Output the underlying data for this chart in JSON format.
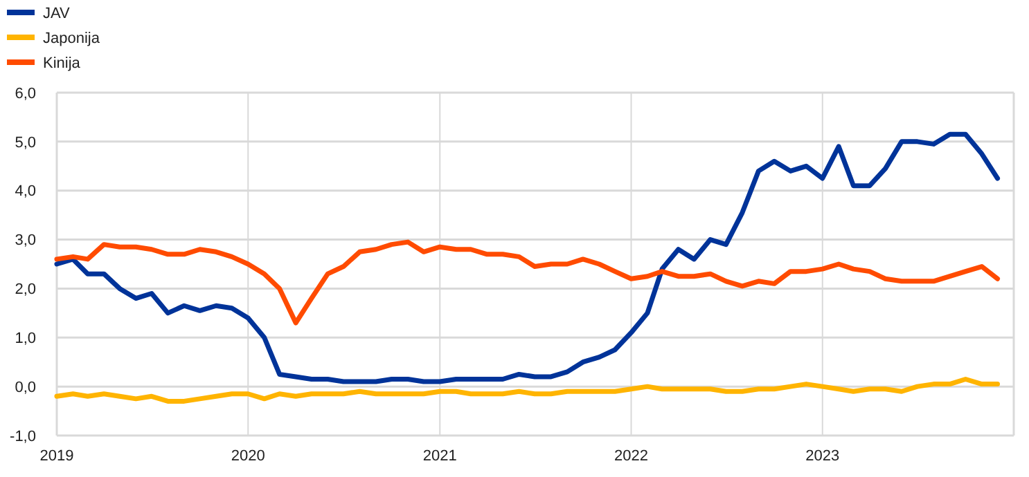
{
  "chart_data": {
    "type": "line",
    "x": [
      "2019-01",
      "2019-02",
      "2019-03",
      "2019-04",
      "2019-05",
      "2019-06",
      "2019-07",
      "2019-08",
      "2019-09",
      "2019-10",
      "2019-11",
      "2019-12",
      "2020-01",
      "2020-02",
      "2020-03",
      "2020-04",
      "2020-05",
      "2020-06",
      "2020-07",
      "2020-08",
      "2020-09",
      "2020-10",
      "2020-11",
      "2020-12",
      "2021-01",
      "2021-02",
      "2021-03",
      "2021-04",
      "2021-05",
      "2021-06",
      "2021-07",
      "2021-08",
      "2021-09",
      "2021-10",
      "2021-11",
      "2021-12",
      "2022-01",
      "2022-02",
      "2022-03",
      "2022-04",
      "2022-05",
      "2022-06",
      "2022-07",
      "2022-08",
      "2022-09",
      "2022-10",
      "2022-11",
      "2022-12",
      "2023-01",
      "2023-02",
      "2023-03",
      "2023-04",
      "2023-05",
      "2023-06",
      "2023-07",
      "2023-08",
      "2023-09",
      "2023-10",
      "2023-11",
      "2023-12"
    ],
    "series": [
      {
        "name": "JAV",
        "color": "#003399",
        "values": [
          2.5,
          2.6,
          2.3,
          2.3,
          2.0,
          1.8,
          1.9,
          1.5,
          1.65,
          1.55,
          1.65,
          1.6,
          1.4,
          1.0,
          0.25,
          0.2,
          0.15,
          0.15,
          0.1,
          0.1,
          0.1,
          0.15,
          0.15,
          0.1,
          0.1,
          0.15,
          0.15,
          0.15,
          0.15,
          0.25,
          0.2,
          0.2,
          0.3,
          0.5,
          0.6,
          0.75,
          1.1,
          1.5,
          2.4,
          2.8,
          2.6,
          3.0,
          2.9,
          3.55,
          4.4,
          4.6,
          4.4,
          4.5,
          4.25,
          4.9,
          4.1,
          4.1,
          4.45,
          5.0,
          5.0,
          4.95,
          5.15,
          5.15,
          4.75,
          4.25
        ]
      },
      {
        "name": "Japonija",
        "color": "#ffb400",
        "values": [
          -0.2,
          -0.15,
          -0.2,
          -0.15,
          -0.2,
          -0.25,
          -0.2,
          -0.3,
          -0.3,
          -0.25,
          -0.2,
          -0.15,
          -0.15,
          -0.25,
          -0.15,
          -0.2,
          -0.15,
          -0.15,
          -0.15,
          -0.1,
          -0.15,
          -0.15,
          -0.15,
          -0.15,
          -0.1,
          -0.1,
          -0.15,
          -0.15,
          -0.15,
          -0.1,
          -0.15,
          -0.15,
          -0.1,
          -0.1,
          -0.1,
          -0.1,
          -0.05,
          0,
          -0.05,
          -0.05,
          -0.05,
          -0.05,
          -0.1,
          -0.1,
          -0.05,
          -0.05,
          0,
          0.05,
          0,
          -0.05,
          -0.1,
          -0.05,
          -0.05,
          -0.1,
          0,
          0.05,
          0.05,
          0.15,
          0.05,
          0.05
        ]
      },
      {
        "name": "Kinija",
        "color": "#ff4b00",
        "values": [
          2.6,
          2.65,
          2.6,
          2.9,
          2.85,
          2.85,
          2.8,
          2.7,
          2.7,
          2.8,
          2.75,
          2.65,
          2.5,
          2.3,
          2.0,
          1.3,
          1.8,
          2.3,
          2.45,
          2.75,
          2.8,
          2.9,
          2.95,
          2.75,
          2.85,
          2.8,
          2.8,
          2.7,
          2.7,
          2.65,
          2.45,
          2.5,
          2.5,
          2.6,
          2.5,
          2.35,
          2.2,
          2.25,
          2.35,
          2.25,
          2.25,
          2.3,
          2.15,
          2.05,
          2.15,
          2.1,
          2.35,
          2.35,
          2.4,
          2.5,
          2.4,
          2.35,
          2.2,
          2.15,
          2.15,
          2.15,
          2.25,
          2.35,
          2.45,
          2.2
        ]
      }
    ],
    "xlim": [
      "2019-01-01",
      "2024-01-01"
    ],
    "xticks": [
      {
        "value": "2019",
        "label": "2019"
      },
      {
        "value": "2020",
        "label": "2020"
      },
      {
        "value": "2021",
        "label": "2021"
      },
      {
        "value": "2022",
        "label": "2022"
      },
      {
        "value": "2023",
        "label": "2023"
      }
    ],
    "ylim": [
      -1,
      6
    ],
    "yticks": [
      {
        "value": -1,
        "label": "-1,0"
      },
      {
        "value": 0,
        "label": "0,0"
      },
      {
        "value": 1,
        "label": "1,0"
      },
      {
        "value": 2,
        "label": "2,0"
      },
      {
        "value": 3,
        "label": "3,0"
      },
      {
        "value": 4,
        "label": "4,0"
      },
      {
        "value": 5,
        "label": "5,0"
      },
      {
        "value": 6,
        "label": "6,0"
      }
    ],
    "grid": true,
    "legend": "top left",
    "marker": "none",
    "line_style": "solid"
  }
}
